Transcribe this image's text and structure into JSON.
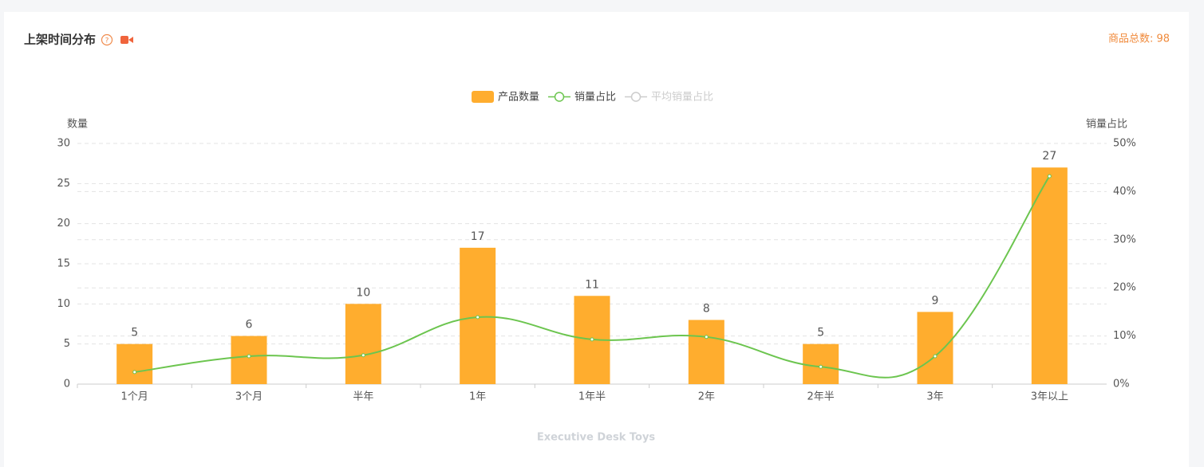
{
  "header": {
    "title": "上架时间分布",
    "total": "商品总数: 98"
  },
  "chart_data": {
    "type": "bar_line",
    "y_axis_label": "数量",
    "y2_axis_label": "销量占比",
    "categories": [
      "1个月",
      "3个月",
      "半年",
      "1年",
      "1年半",
      "2年",
      "2年半",
      "3年",
      "3年以上"
    ],
    "series": [
      {
        "name": "产品数量",
        "type": "bar",
        "color": "#ffad2e",
        "values": [
          5,
          6,
          10,
          17,
          11,
          8,
          5,
          9,
          27
        ]
      },
      {
        "name": "销量占比",
        "type": "line",
        "axis": "y2",
        "color": "#6cc54f",
        "values": [
          2.5,
          5.8,
          6.0,
          13.9,
          9.3,
          9.8,
          3.6,
          5.8,
          43.2
        ]
      },
      {
        "name": "平均销量占比",
        "type": "line",
        "axis": "y2",
        "color": "#c8c8c8",
        "hidden": true
      }
    ],
    "ylim": [
      0,
      30
    ],
    "yticks": [
      0,
      5,
      10,
      15,
      20,
      25,
      30
    ],
    "y2lim": [
      0,
      50
    ],
    "y2ticks": [
      {
        "value": 0,
        "label": "0%"
      },
      {
        "value": 10,
        "label": "10%"
      },
      {
        "value": 20,
        "label": "20%"
      },
      {
        "value": 30,
        "label": "30%"
      },
      {
        "value": 40,
        "label": "40%"
      },
      {
        "value": 50,
        "label": "50%"
      }
    ],
    "grid": true,
    "caption": "Executive Desk Toys"
  }
}
